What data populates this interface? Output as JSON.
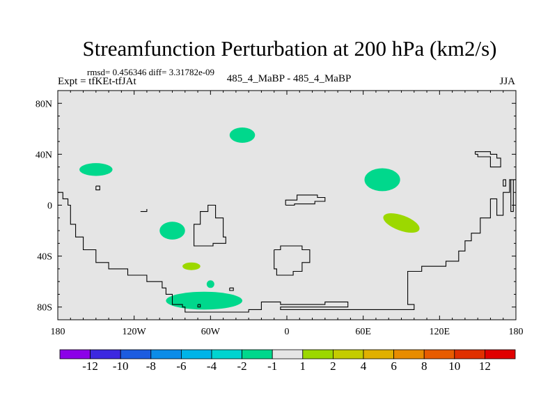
{
  "title": "Streamfunction Perturbation at 200 hPa (km2/s)",
  "stats_line": "rmsd= 0.456346 diff= 3.31782e-09",
  "left_label": "Expt = tfKEt-tfJAt",
  "center_label": "485_4_MaBP - 485_4_MaBP",
  "right_label": "JJA",
  "colors": {
    "map_background": "#e5e5e5",
    "coast": "#000000",
    "contour_neg": "#00d88c",
    "contour_pos": "#9cd800"
  },
  "chart_data": {
    "type": "heatmap",
    "projection": "cylindrical-equidistant",
    "xlim": [
      -180,
      180
    ],
    "ylim": [
      -90,
      90
    ],
    "x_ticks": [
      {
        "value": -180,
        "label": "180"
      },
      {
        "value": -120,
        "label": "120W"
      },
      {
        "value": -60,
        "label": "60W"
      },
      {
        "value": 0,
        "label": "0"
      },
      {
        "value": 60,
        "label": "60E"
      },
      {
        "value": 120,
        "label": "120E"
      },
      {
        "value": 180,
        "label": "180"
      }
    ],
    "y_ticks": [
      {
        "value": 80,
        "label": "80N"
      },
      {
        "value": 40,
        "label": "40N"
      },
      {
        "value": 0,
        "label": "0"
      },
      {
        "value": -40,
        "label": "40S"
      },
      {
        "value": -80,
        "label": "80S"
      }
    ],
    "colorbar": {
      "colors": [
        "#8c00e8",
        "#3c28e0",
        "#1c5ce0",
        "#0c8ce8",
        "#00b4e8",
        "#00d4d0",
        "#00d88c",
        "#e5e5e5",
        "#9cd800",
        "#c4cc00",
        "#e0b000",
        "#e88c00",
        "#e85c00",
        "#e03000",
        "#e00000"
      ],
      "labels": [
        "-12",
        "-10",
        "-8",
        "-6",
        "-4",
        "-2",
        "-1",
        "1",
        "2",
        "4",
        "6",
        "8",
        "10",
        "12"
      ]
    },
    "anomalies": [
      {
        "lon": -150,
        "lat": 28,
        "rlon": 13,
        "rlat": 5,
        "sign": "negative"
      },
      {
        "lon": -35,
        "lat": 55,
        "rlon": 10,
        "rlat": 6,
        "sign": "negative"
      },
      {
        "lon": -90,
        "lat": -20,
        "rlon": 10,
        "rlat": 7,
        "sign": "negative"
      },
      {
        "lon": 75,
        "lat": 20,
        "rlon": 14,
        "rlat": 9,
        "sign": "negative"
      },
      {
        "lon": -65,
        "lat": -75,
        "rlon": 30,
        "rlat": 7,
        "sign": "negative"
      },
      {
        "lon": 90,
        "lat": -14,
        "rlon": 15,
        "rlat": 6,
        "rot": 20,
        "sign": "positive"
      },
      {
        "lon": -75,
        "lat": -48,
        "rlon": 7,
        "rlat": 3,
        "sign": "positive"
      },
      {
        "lon": -60,
        "lat": -62,
        "rlon": 3,
        "rlat": 3,
        "sign": "negative"
      }
    ],
    "coastlines": [
      [
        [
          -180,
          10
        ],
        [
          -176,
          10
        ],
        [
          -176,
          5
        ],
        [
          -172,
          5
        ],
        [
          -172,
          0
        ],
        [
          -170,
          0
        ],
        [
          -170,
          -15
        ],
        [
          -166,
          -15
        ],
        [
          -166,
          -25
        ],
        [
          -160,
          -25
        ],
        [
          -160,
          -35
        ],
        [
          -150,
          -35
        ],
        [
          -150,
          -45
        ],
        [
          -140,
          -45
        ],
        [
          -140,
          -50
        ],
        [
          -125,
          -50
        ],
        [
          -125,
          -55
        ],
        [
          -110,
          -55
        ],
        [
          -110,
          -60
        ],
        [
          -98,
          -60
        ],
        [
          -98,
          -65
        ],
        [
          -95,
          -65
        ],
        [
          -95,
          -70
        ],
        [
          -90,
          -70
        ],
        [
          -90,
          -78
        ],
        [
          -82,
          -78
        ],
        [
          -82,
          -80
        ],
        [
          -80,
          -80
        ],
        [
          -80,
          -84
        ],
        [
          -30,
          -84
        ],
        [
          -30,
          -82
        ],
        [
          -20,
          -82
        ],
        [
          -20,
          -76
        ],
        [
          -5,
          -76
        ],
        [
          -5,
          -78
        ],
        [
          30,
          -78
        ],
        [
          30,
          -76
        ],
        [
          48,
          -76
        ],
        [
          48,
          -80
        ],
        [
          -5,
          -80
        ],
        [
          -5,
          -82
        ],
        [
          100,
          -82
        ],
        [
          100,
          -78
        ],
        [
          95,
          -78
        ],
        [
          95,
          -52
        ],
        [
          106,
          -52
        ],
        [
          106,
          -48
        ],
        [
          125,
          -48
        ],
        [
          125,
          -44
        ],
        [
          135,
          -44
        ],
        [
          135,
          -36
        ],
        [
          140,
          -36
        ],
        [
          140,
          -28
        ],
        [
          145,
          -28
        ],
        [
          145,
          -22
        ],
        [
          152,
          -22
        ],
        [
          152,
          -10
        ],
        [
          160,
          -10
        ],
        [
          160,
          5
        ],
        [
          165,
          5
        ],
        [
          165,
          -8
        ],
        [
          170,
          -8
        ],
        [
          170,
          10
        ],
        [
          175,
          10
        ],
        [
          175,
          20
        ],
        [
          180,
          20
        ]
      ],
      [
        [
          -115,
          -5
        ],
        [
          -110,
          -5
        ],
        [
          -110,
          -3
        ]
      ],
      [
        [
          -150,
          15
        ],
        [
          -147,
          15
        ],
        [
          -147,
          12
        ],
        [
          -150,
          12
        ],
        [
          -150,
          15
        ]
      ],
      [
        [
          -73,
          -30
        ],
        [
          -73,
          -15
        ],
        [
          -68,
          -15
        ],
        [
          -68,
          -5
        ],
        [
          -62,
          -5
        ],
        [
          -62,
          0
        ],
        [
          -56,
          0
        ],
        [
          -56,
          -10
        ],
        [
          -50,
          -10
        ],
        [
          -50,
          -25
        ],
        [
          -48,
          -25
        ],
        [
          -48,
          -30
        ],
        [
          -58,
          -30
        ],
        [
          -58,
          -32
        ],
        [
          -73,
          -32
        ],
        [
          -73,
          -30
        ]
      ],
      [
        [
          -10,
          -35
        ],
        [
          -5,
          -35
        ],
        [
          -5,
          -32
        ],
        [
          12,
          -32
        ],
        [
          12,
          -35
        ],
        [
          18,
          -35
        ],
        [
          18,
          -45
        ],
        [
          12,
          -45
        ],
        [
          12,
          -52
        ],
        [
          5,
          -52
        ],
        [
          5,
          -55
        ],
        [
          -8,
          -55
        ],
        [
          -8,
          -50
        ],
        [
          -10,
          -50
        ],
        [
          -10,
          -35
        ]
      ],
      [
        [
          -1,
          0
        ],
        [
          -1,
          4
        ],
        [
          8,
          4
        ],
        [
          8,
          8
        ],
        [
          24,
          8
        ],
        [
          24,
          6
        ],
        [
          30,
          6
        ],
        [
          30,
          3
        ],
        [
          22,
          3
        ],
        [
          22,
          1
        ],
        [
          6,
          1
        ],
        [
          6,
          0
        ],
        [
          -1,
          0
        ]
      ],
      [
        [
          -45,
          -65
        ],
        [
          -42,
          -65
        ],
        [
          -42,
          -67
        ],
        [
          -45,
          -67
        ],
        [
          -45,
          -65
        ]
      ],
      [
        [
          -70,
          -78
        ],
        [
          -68,
          -78
        ],
        [
          -68,
          -80
        ],
        [
          -70,
          -80
        ],
        [
          -70,
          -78
        ]
      ],
      [
        [
          148,
          40
        ],
        [
          148,
          42
        ],
        [
          160,
          42
        ],
        [
          160,
          40
        ],
        [
          165,
          40
        ],
        [
          165,
          37
        ],
        [
          168,
          37
        ],
        [
          168,
          30
        ],
        [
          160,
          30
        ],
        [
          160,
          38
        ],
        [
          150,
          38
        ],
        [
          150,
          40
        ],
        [
          148,
          40
        ]
      ],
      [
        [
          176,
          20
        ],
        [
          176,
          -5
        ],
        [
          178,
          -5
        ],
        [
          178,
          20
        ]
      ],
      [
        [
          170,
          20
        ],
        [
          170,
          15
        ],
        [
          172,
          15
        ],
        [
          172,
          20
        ],
        [
          170,
          20
        ]
      ]
    ]
  }
}
